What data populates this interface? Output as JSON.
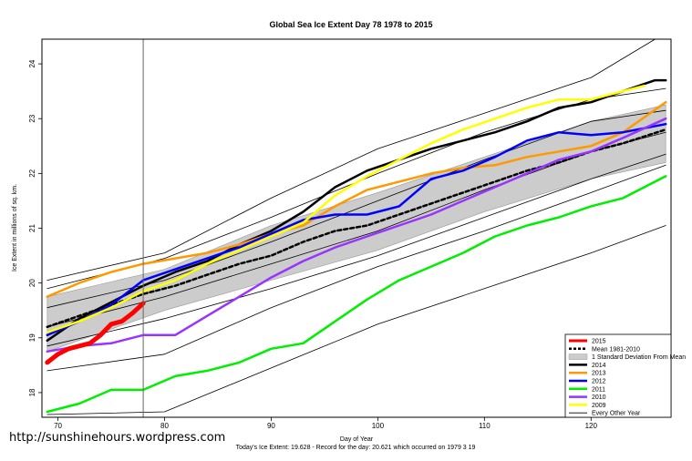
{
  "chart_data": {
    "type": "line",
    "title": "Global Sea Ice Extent Day 78 1978 to 2015",
    "xlabel": "Day of Year",
    "ylabel": "Ice Extent in millions of sq. km.",
    "xlim": [
      68.5,
      127.5
    ],
    "ylim": [
      17.55,
      24.45
    ],
    "x_ticks": [
      70,
      80,
      90,
      100,
      110,
      120
    ],
    "y_ticks": [
      18,
      19,
      20,
      21,
      22,
      23,
      24
    ],
    "grid": false,
    "vline_day": 78,
    "legend_position": "bottom-right",
    "footer": "Today's Ice Extent: 19.628  - Record for the day: 20.621 which occurred on 1979 3 19",
    "watermark": "http://sunshinehours.wordpress.com",
    "sd_band": {
      "legend": "1 Standard Deviation From Mean",
      "x": [
        69,
        80,
        90,
        100,
        110,
        120,
        127
      ],
      "lower": [
        18.75,
        19.5,
        20.05,
        20.6,
        21.3,
        21.9,
        22.2
      ],
      "upper": [
        19.75,
        20.25,
        21.05,
        21.65,
        22.3,
        22.95,
        23.25
      ]
    },
    "series": [
      {
        "name": "2015",
        "color": "#ff0000",
        "width": 5,
        "dash": false,
        "x": [
          69,
          70,
          71,
          72,
          73,
          74,
          75,
          76,
          77,
          78
        ],
        "y": [
          18.55,
          18.7,
          18.8,
          18.85,
          18.9,
          19.05,
          19.25,
          19.3,
          19.45,
          19.63
        ]
      },
      {
        "name": "Mean 1981-2010",
        "color": "#000000",
        "width": 2.5,
        "dash": true,
        "x": [
          69,
          72,
          75,
          78,
          81,
          84,
          87,
          90,
          93,
          96,
          99,
          102,
          105,
          108,
          111,
          114,
          117,
          120,
          123,
          127
        ],
        "y": [
          19.2,
          19.4,
          19.6,
          19.8,
          19.95,
          20.15,
          20.35,
          20.5,
          20.75,
          20.95,
          21.05,
          21.25,
          21.45,
          21.65,
          21.85,
          22.05,
          22.2,
          22.4,
          22.55,
          22.8
        ]
      },
      {
        "name": "2014",
        "color": "#000000",
        "width": 2.5,
        "dash": false,
        "x": [
          69,
          72,
          75,
          78,
          81,
          84,
          87,
          90,
          93,
          96,
          99,
          102,
          105,
          108,
          111,
          114,
          117,
          120,
          123,
          126,
          127
        ],
        "y": [
          18.95,
          19.35,
          19.65,
          19.95,
          20.2,
          20.4,
          20.7,
          20.95,
          21.3,
          21.75,
          22.05,
          22.25,
          22.45,
          22.6,
          22.75,
          22.95,
          23.2,
          23.3,
          23.5,
          23.7,
          23.7
        ]
      },
      {
        "name": "2013",
        "color": "#ff9900",
        "width": 2.5,
        "dash": false,
        "x": [
          69,
          72,
          75,
          78,
          81,
          84,
          87,
          90,
          93,
          96,
          99,
          102,
          105,
          108,
          111,
          114,
          117,
          120,
          123,
          127
        ],
        "y": [
          19.75,
          20.0,
          20.2,
          20.35,
          20.45,
          20.55,
          20.7,
          20.9,
          21.05,
          21.4,
          21.7,
          21.85,
          22.0,
          22.1,
          22.15,
          22.3,
          22.4,
          22.5,
          22.75,
          23.3
        ]
      },
      {
        "name": "2012",
        "color": "#0000ff",
        "width": 2.5,
        "dash": false,
        "x": [
          69,
          72,
          75,
          78,
          81,
          84,
          87,
          90,
          93,
          96,
          99,
          102,
          105,
          108,
          111,
          114,
          117,
          120,
          123,
          127
        ],
        "y": [
          19.05,
          19.3,
          19.6,
          20.05,
          20.25,
          20.45,
          20.65,
          20.9,
          21.15,
          21.25,
          21.25,
          21.4,
          21.9,
          22.05,
          22.3,
          22.6,
          22.75,
          22.7,
          22.75,
          22.9
        ]
      },
      {
        "name": "2011",
        "color": "#00ee00",
        "width": 2.5,
        "dash": false,
        "x": [
          69,
          72,
          75,
          78,
          81,
          84,
          87,
          90,
          93,
          96,
          99,
          102,
          105,
          108,
          111,
          114,
          117,
          120,
          123,
          127
        ],
        "y": [
          17.65,
          17.8,
          18.05,
          18.05,
          18.3,
          18.4,
          18.55,
          18.8,
          18.9,
          19.3,
          19.7,
          20.05,
          20.3,
          20.55,
          20.85,
          21.05,
          21.2,
          21.4,
          21.55,
          21.95
        ]
      },
      {
        "name": "2010",
        "color": "#9933ff",
        "width": 2.5,
        "dash": false,
        "x": [
          69,
          72,
          75,
          78,
          81,
          84,
          87,
          90,
          93,
          96,
          99,
          102,
          105,
          108,
          111,
          114,
          117,
          120,
          123,
          127
        ],
        "y": [
          18.75,
          18.85,
          18.9,
          19.05,
          19.05,
          19.4,
          19.75,
          20.1,
          20.4,
          20.65,
          20.85,
          21.05,
          21.25,
          21.5,
          21.75,
          22.0,
          22.25,
          22.4,
          22.65,
          23.0
        ]
      },
      {
        "name": "2009",
        "color": "#ffff00",
        "width": 2.5,
        "dash": false,
        "x": [
          69,
          72,
          75,
          78,
          81,
          84,
          87,
          90,
          93,
          96,
          99,
          102,
          105,
          108,
          111,
          114,
          117,
          120,
          123,
          125
        ],
        "y": [
          19.1,
          19.3,
          19.55,
          19.85,
          20.05,
          20.35,
          20.6,
          20.85,
          21.1,
          21.6,
          21.95,
          22.25,
          22.55,
          22.8,
          23.0,
          23.2,
          23.35,
          23.35,
          23.5,
          23.6
        ]
      },
      {
        "name": "Every Other Year",
        "color": "#000000",
        "width": 0.8,
        "dash": false,
        "x": [
          69,
          80,
          90,
          100,
          110,
          120,
          127
        ],
        "y": [
          17.6,
          17.65,
          18.45,
          19.25,
          19.9,
          20.55,
          21.05
        ]
      },
      {
        "name": "",
        "color": "#000000",
        "width": 0.8,
        "dash": false,
        "x": [
          69,
          80,
          90,
          100,
          110,
          120,
          127
        ],
        "y": [
          18.4,
          18.7,
          19.55,
          20.3,
          20.95,
          21.65,
          22.15
        ]
      },
      {
        "name": "",
        "color": "#000000",
        "width": 0.8,
        "dash": false,
        "x": [
          69,
          80,
          90,
          100,
          110,
          120,
          127
        ],
        "y": [
          18.85,
          19.35,
          19.9,
          20.5,
          21.2,
          21.9,
          22.35
        ]
      },
      {
        "name": "",
        "color": "#000000",
        "width": 0.8,
        "dash": false,
        "x": [
          69,
          80,
          90,
          100,
          110,
          120,
          127
        ],
        "y": [
          19.2,
          19.75,
          20.35,
          20.95,
          21.7,
          22.4,
          22.75
        ]
      },
      {
        "name": "",
        "color": "#000000",
        "width": 0.8,
        "dash": false,
        "x": [
          69,
          80,
          90,
          100,
          110,
          120,
          127
        ],
        "y": [
          19.55,
          20.05,
          20.75,
          21.5,
          22.25,
          22.95,
          23.15
        ]
      },
      {
        "name": "",
        "color": "#000000",
        "width": 0.8,
        "dash": false,
        "x": [
          69,
          80,
          90,
          100,
          110,
          120,
          127
        ],
        "y": [
          19.9,
          20.45,
          21.2,
          22.0,
          22.75,
          23.35,
          23.55
        ]
      },
      {
        "name": "",
        "color": "#000000",
        "width": 0.8,
        "dash": false,
        "x": [
          69,
          80,
          90,
          100,
          110,
          120,
          126
        ],
        "y": [
          20.05,
          20.55,
          21.55,
          22.45,
          23.1,
          23.75,
          24.45
        ]
      }
    ]
  }
}
